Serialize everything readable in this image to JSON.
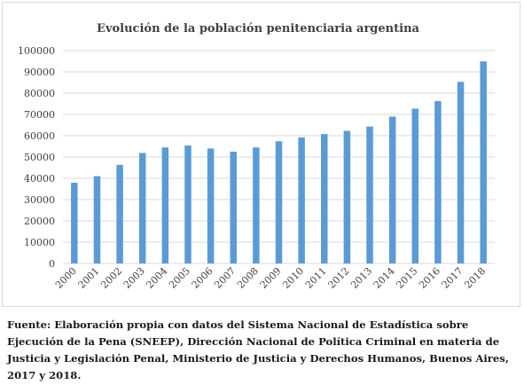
{
  "chart_data": {
    "type": "bar",
    "title": "Evolución de la población penitenciaria argentina",
    "xlabel": "",
    "ylabel": "",
    "categories": [
      "2000",
      "2001",
      "2002",
      "2003",
      "2004",
      "2005",
      "2006",
      "2007",
      "2008",
      "2009",
      "2010",
      "2011",
      "2012",
      "2013",
      "2014",
      "2015",
      "2016",
      "2017",
      "2018"
    ],
    "series": [
      {
        "values": [
          37900,
          41000,
          46300,
          51900,
          54500,
          55400,
          54000,
          52500,
          54500,
          57400,
          59200,
          60800,
          62300,
          64300,
          69000,
          72700,
          76300,
          85300,
          94900
        ]
      }
    ],
    "ylim": [
      0,
      100000
    ],
    "yticks": [
      0,
      10000,
      20000,
      30000,
      40000,
      50000,
      60000,
      70000,
      80000,
      90000,
      100000
    ],
    "grid": true,
    "bar_color": "#5b9bd5"
  },
  "footnote": "Fuente: Elaboración propia con datos del Sistema Nacional de Estadística sobre Ejecución de la Pena (SNEEP), Dirección Nacional de Política Criminal en materia de Justicia y Legislación Penal, Ministerio de Justicia y Derechos Humanos, Buenos Aires, 2017 y 2018."
}
